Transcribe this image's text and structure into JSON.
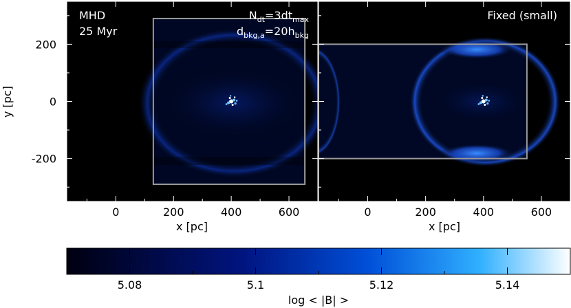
{
  "chart_data": [
    {
      "type": "heatmap",
      "panel": "left",
      "annotation_lines": [
        "MHD",
        "25 Myr"
      ],
      "param_1": {
        "base": "N",
        "sub1": "dt",
        "mid": "=3dt",
        "sub2": "max"
      },
      "param_2": {
        "base": "d",
        "sub1": "bkg,a",
        "mid": "=20h",
        "sub2": "bkg"
      },
      "xlabel": "x [pc]",
      "ylabel": "y [pc]",
      "xlim": [
        -170,
        700
      ],
      "ylim": [
        -350,
        350
      ],
      "xticks": [
        0,
        200,
        400,
        600
      ],
      "yticks": [
        200,
        0,
        -200
      ],
      "tick_labels_x": [
        "0",
        "200",
        "400",
        "600"
      ],
      "tick_labels_y": [
        "200",
        "0",
        "-200"
      ],
      "box": {
        "x": [
          130,
          655
        ],
        "y": [
          -290,
          290
        ]
      },
      "box_color": "#9a9a9a",
      "source": {
        "x": 400,
        "y": 0
      }
    },
    {
      "type": "heatmap",
      "panel": "right",
      "annotation": "Fixed (small)",
      "xlabel": "x [pc]",
      "xlim": [
        -170,
        700
      ],
      "ylim": [
        -350,
        350
      ],
      "xticks": [
        0,
        200,
        400,
        600
      ],
      "tick_labels_x": [
        "0",
        "200",
        "400",
        "600"
      ],
      "box": {
        "x": [
          -200,
          550
        ],
        "y": [
          -200,
          200
        ]
      },
      "box_color": "#9a9a9a",
      "source": {
        "x": 400,
        "y": 0
      }
    }
  ],
  "colorbar": {
    "label": "log < |B| >",
    "range": [
      5.07,
      5.15
    ],
    "ticks": [
      5.08,
      5.1,
      5.12,
      5.14
    ],
    "tick_labels": [
      "5.08",
      "5.1",
      "5.12",
      "5.14"
    ],
    "colors": [
      "#000010",
      "#001480",
      "#0060e8",
      "#30b0ff",
      "#ffffff"
    ]
  }
}
